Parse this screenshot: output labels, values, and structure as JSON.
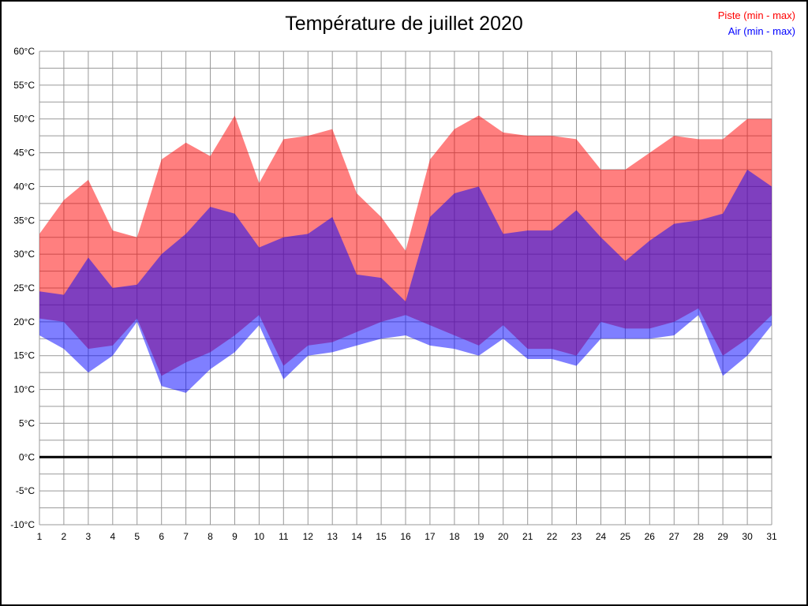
{
  "chart_data": {
    "type": "area",
    "title": "Température de juillet 2020",
    "unit": "°C",
    "ylim": [
      -10,
      60
    ],
    "ytick_step": 5,
    "grid_step": 2.5,
    "grid": true,
    "grid_color": "#999999",
    "zero_line": true,
    "zero_line_color": "#000000",
    "legend_position": "top-right",
    "legend": [
      {
        "label": "Piste (min - max)",
        "color": "#ff0000"
      },
      {
        "label": "Air (min - max)",
        "color": "#0000ff"
      }
    ],
    "x": [
      1,
      2,
      3,
      4,
      5,
      6,
      7,
      8,
      9,
      10,
      11,
      12,
      13,
      14,
      15,
      16,
      17,
      18,
      19,
      20,
      21,
      22,
      23,
      24,
      25,
      26,
      27,
      28,
      29,
      30,
      31
    ],
    "series": [
      {
        "name": "Piste",
        "color": "#ff0000",
        "opacity": 0.5,
        "max": [
          33,
          38,
          41,
          33.5,
          32.5,
          44,
          46.5,
          44.5,
          50.5,
          40.5,
          47,
          47.5,
          48.5,
          39,
          35.5,
          30.5,
          44,
          48.5,
          50.5,
          48,
          47.5,
          47.5,
          47,
          42.5,
          42.5,
          45,
          47.5,
          47,
          47,
          50,
          50
        ],
        "min": [
          20.5,
          20,
          16,
          16.5,
          20.5,
          12,
          14,
          15.5,
          18,
          21,
          13.5,
          16.5,
          17,
          18.5,
          20,
          21,
          19.5,
          18,
          16.5,
          19.5,
          16,
          16,
          15,
          20,
          19,
          19,
          20,
          22,
          15,
          17.5,
          21
        ]
      },
      {
        "name": "Air",
        "color": "#0000ff",
        "opacity": 0.5,
        "max": [
          24.5,
          24,
          29.5,
          25,
          25.5,
          30,
          33,
          37,
          36,
          31,
          32.5,
          33,
          35.5,
          27,
          26.5,
          23,
          35.5,
          39,
          40,
          33,
          33.5,
          33.5,
          36.5,
          32.5,
          29,
          32,
          34.5,
          35,
          36,
          42.5,
          40
        ],
        "min": [
          18,
          16,
          12.5,
          15,
          20,
          10.5,
          9.5,
          13,
          15.5,
          19.5,
          11.5,
          15,
          15.5,
          16.5,
          17.5,
          18,
          16.5,
          16,
          15,
          17.5,
          14.5,
          14.5,
          13.5,
          17.5,
          17.5,
          17.5,
          18,
          21,
          12,
          15,
          19.5
        ]
      }
    ]
  }
}
